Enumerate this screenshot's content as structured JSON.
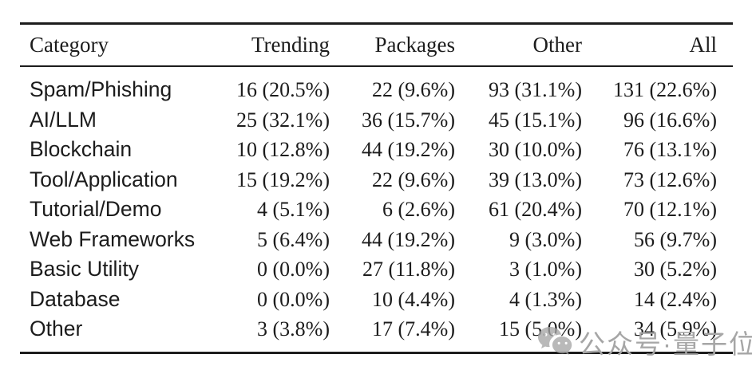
{
  "table": {
    "columns": [
      "Category",
      "Trending",
      "Packages",
      "Other",
      "All"
    ],
    "rows": [
      [
        "Spam/Phishing",
        "16 (20.5%)",
        "22 (9.6%)",
        "93 (31.1%)",
        "131 (22.6%)"
      ],
      [
        "AI/LLM",
        "25 (32.1%)",
        "36 (15.7%)",
        "45 (15.1%)",
        "96 (16.6%)"
      ],
      [
        "Blockchain",
        "10 (12.8%)",
        "44 (19.2%)",
        "30 (10.0%)",
        "76 (13.1%)"
      ],
      [
        "Tool/Application",
        "15 (19.2%)",
        "22 (9.6%)",
        "39 (13.0%)",
        "73 (12.6%)"
      ],
      [
        "Tutorial/Demo",
        "4 (5.1%)",
        "6 (2.6%)",
        "61 (20.4%)",
        "70 (12.1%)"
      ],
      [
        "Web Frameworks",
        "5 (6.4%)",
        "44 (19.2%)",
        "9 (3.0%)",
        "56 (9.7%)"
      ],
      [
        "Basic Utility",
        "0 (0.0%)",
        "27 (11.8%)",
        "3 (1.0%)",
        "30 (5.2%)"
      ],
      [
        "Database",
        "0 (0.0%)",
        "10 (4.4%)",
        "4 (1.3%)",
        "14 (2.4%)"
      ],
      [
        "Other",
        "3 (3.8%)",
        "17 (7.4%)",
        "15 (5.0%)",
        "34 (5.9%)"
      ]
    ]
  },
  "watermark": {
    "icon": "wechat-icon",
    "text": "公众号·量子位"
  },
  "colors": {
    "background": "#ffffff",
    "text": "#1c1c1c",
    "rule": "#1c1c1c",
    "watermark_gray": "#a6a6a6"
  }
}
